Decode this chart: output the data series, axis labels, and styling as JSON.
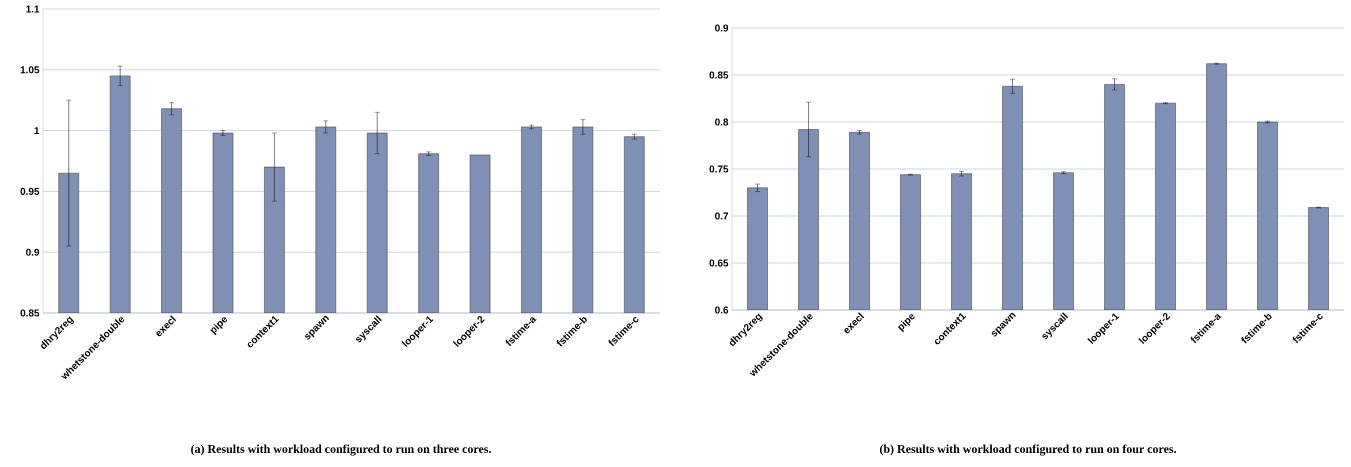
{
  "chart_data": [
    {
      "type": "bar",
      "title": "(a) Results with workload configured to run on three cores.",
      "categories": [
        "dhry2reg",
        "whetstone-double",
        "execl",
        "pipe",
        "context1",
        "spawn",
        "syscall",
        "looper-1",
        "looper-2",
        "fstime-a",
        "fstime-b",
        "fstime-c"
      ],
      "values": [
        0.965,
        1.045,
        1.018,
        0.998,
        0.97,
        1.003,
        0.998,
        0.981,
        0.98,
        1.003,
        1.003,
        0.995
      ],
      "errors": [
        0.06,
        0.008,
        0.005,
        0.002,
        0.028,
        0.005,
        0.017,
        0.0015,
        null,
        0.0015,
        0.006,
        0.002
      ],
      "color": "#7f8fb5",
      "ylim": [
        0.85,
        1.1
      ],
      "yticks": [
        0.85,
        0.9,
        0.95,
        1,
        1.05,
        1.1
      ],
      "grid": "y"
    },
    {
      "type": "bar",
      "title": "(b) Results with workload configured to run on four cores.",
      "categories": [
        "dhry2reg",
        "whetstone-double",
        "execl",
        "pipe",
        "context1",
        "spawn",
        "syscall",
        "looper-1",
        "looper-2",
        "fstime-a",
        "fstime-b",
        "fstime-c"
      ],
      "values": [
        0.73,
        0.792,
        0.789,
        0.744,
        0.745,
        0.838,
        0.746,
        0.84,
        0.82,
        0.862,
        0.8,
        0.709
      ],
      "errors": [
        0.004,
        0.029,
        0.002,
        0.0005,
        0.0025,
        0.0075,
        0.001,
        0.006,
        0.0005,
        0.0005,
        0.001,
        0.0005
      ],
      "color": "#7f8fb5",
      "ylim": [
        0.6,
        0.9
      ],
      "yticks": [
        0.6,
        0.65,
        0.7,
        0.75,
        0.8,
        0.85,
        0.9
      ],
      "grid": "y"
    }
  ]
}
